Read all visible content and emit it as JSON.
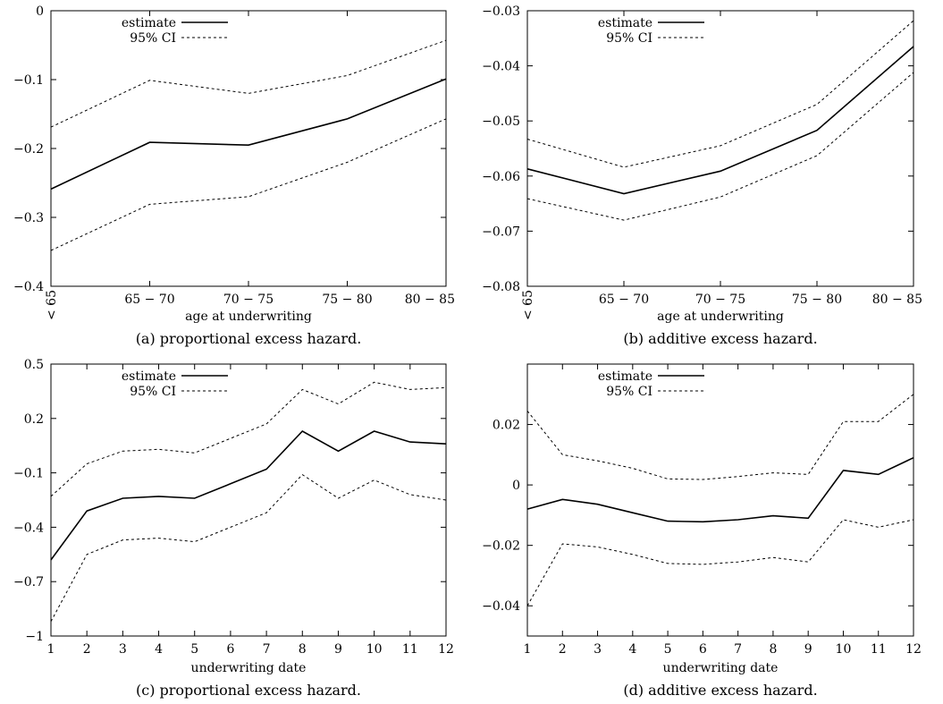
{
  "chart_data": [
    {
      "type": "line",
      "caption": "(a) proportional excess hazard.",
      "xlabel": "age at underwriting",
      "ylabel": "",
      "categories": [
        "< 65",
        "65 − 70",
        "70 − 75",
        "75 − 80",
        "80 − 85"
      ],
      "ylim": [
        -0.4,
        0
      ],
      "yticks": [
        0,
        -0.1,
        -0.2,
        -0.3,
        -0.4
      ],
      "ytick_labels": [
        "0",
        "−0.1",
        "−0.2",
        "−0.3",
        "−0.4"
      ],
      "legend": {
        "placement": "top-left",
        "entries": [
          "estimate",
          "95% CI"
        ]
      },
      "grid": false,
      "series": [
        {
          "name": "estimate",
          "style": "solid",
          "values": [
            -0.259,
            -0.191,
            -0.195,
            -0.157,
            -0.099
          ]
        },
        {
          "name": "95% CI",
          "style": "dashed",
          "values": [
            -0.169,
            -0.101,
            -0.12,
            -0.094,
            -0.043
          ]
        },
        {
          "name": "95% CI",
          "style": "dashed",
          "values": [
            -0.348,
            -0.281,
            -0.27,
            -0.22,
            -0.157
          ]
        }
      ]
    },
    {
      "type": "line",
      "caption": "(b)  additive excess hazard.",
      "xlabel": "age at underwriting",
      "ylabel": "",
      "categories": [
        "< 65",
        "65 − 70",
        "70 − 75",
        "75 − 80",
        "80 − 85"
      ],
      "ylim": [
        -0.08,
        -0.03
      ],
      "yticks": [
        -0.03,
        -0.04,
        -0.05,
        -0.06,
        -0.07,
        -0.08
      ],
      "ytick_labels": [
        "−0.03",
        "−0.04",
        "−0.05",
        "−0.06",
        "−0.07",
        "−0.08"
      ],
      "legend": {
        "placement": "top-left",
        "entries": [
          "estimate",
          "95% CI"
        ]
      },
      "grid": false,
      "series": [
        {
          "name": "estimate",
          "style": "solid",
          "values": [
            -0.0587,
            -0.0632,
            -0.0591,
            -0.0517,
            -0.0365
          ]
        },
        {
          "name": "95% CI",
          "style": "dashed",
          "values": [
            -0.0533,
            -0.0584,
            -0.0545,
            -0.047,
            -0.0318
          ]
        },
        {
          "name": "95% CI",
          "style": "dashed",
          "values": [
            -0.0641,
            -0.068,
            -0.0638,
            -0.0563,
            -0.0412
          ]
        }
      ]
    },
    {
      "type": "line",
      "caption": "(c) proportional excess hazard.",
      "xlabel": "underwriting date",
      "ylabel": "",
      "categories": [
        "1",
        "2",
        "3",
        "4",
        "5",
        "6",
        "7",
        "8",
        "9",
        "10",
        "11",
        "12"
      ],
      "ylim": [
        -1,
        0.5
      ],
      "yticks": [
        0.5,
        0.2,
        -0.1,
        -0.4,
        -0.7,
        -1
      ],
      "ytick_labels": [
        "0.5",
        "0.2",
        "−0.1",
        "−0.4",
        "−0.7",
        "−1"
      ],
      "legend": {
        "placement": "top-left",
        "entries": [
          "estimate",
          "95% CI"
        ]
      },
      "grid": false,
      "series": [
        {
          "name": "estimate",
          "style": "solid",
          "values": [
            -0.58,
            -0.31,
            -0.24,
            -0.23,
            -0.24,
            -0.16,
            -0.08,
            0.13,
            0.02,
            0.13,
            0.07,
            0.06
          ]
        },
        {
          "name": "95% CI",
          "style": "dashed",
          "values": [
            -0.23,
            -0.05,
            0.02,
            0.03,
            0.01,
            0.09,
            0.17,
            0.36,
            0.28,
            0.4,
            0.36,
            0.37
          ]
        },
        {
          "name": "95% CI",
          "style": "dashed",
          "values": [
            -0.92,
            -0.55,
            -0.47,
            -0.46,
            -0.48,
            -0.4,
            -0.32,
            -0.11,
            -0.24,
            -0.14,
            -0.22,
            -0.25
          ]
        }
      ]
    },
    {
      "type": "line",
      "caption": "(d)  additive excess hazard.",
      "xlabel": "underwriting date",
      "ylabel": "",
      "categories": [
        "1",
        "2",
        "3",
        "4",
        "5",
        "6",
        "7",
        "8",
        "9",
        "10",
        "11",
        "12"
      ],
      "ylim": [
        -0.05,
        0.04
      ],
      "yticks": [
        0.02,
        0,
        -0.02,
        -0.04
      ],
      "ytick_labels": [
        "0.02",
        "0",
        "−0.02",
        "−0.04"
      ],
      "legend": {
        "placement": "top-left",
        "entries": [
          "estimate",
          "95% CI"
        ]
      },
      "grid": false,
      "series": [
        {
          "name": "estimate",
          "style": "solid",
          "values": [
            -0.008,
            -0.0048,
            -0.0064,
            -0.0092,
            -0.012,
            -0.0122,
            -0.0115,
            -0.0102,
            -0.011,
            0.0048,
            0.0035,
            0.009
          ]
        },
        {
          "name": "95% CI",
          "style": "dashed",
          "values": [
            0.0245,
            0.01,
            0.008,
            0.0055,
            0.002,
            0.0018,
            0.0028,
            0.004,
            0.0035,
            0.021,
            0.021,
            0.03
          ]
        },
        {
          "name": "95% CI",
          "style": "dashed",
          "values": [
            -0.04,
            -0.0195,
            -0.0205,
            -0.023,
            -0.026,
            -0.0263,
            -0.0255,
            -0.024,
            -0.0255,
            -0.0115,
            -0.014,
            -0.0115
          ]
        }
      ]
    }
  ]
}
